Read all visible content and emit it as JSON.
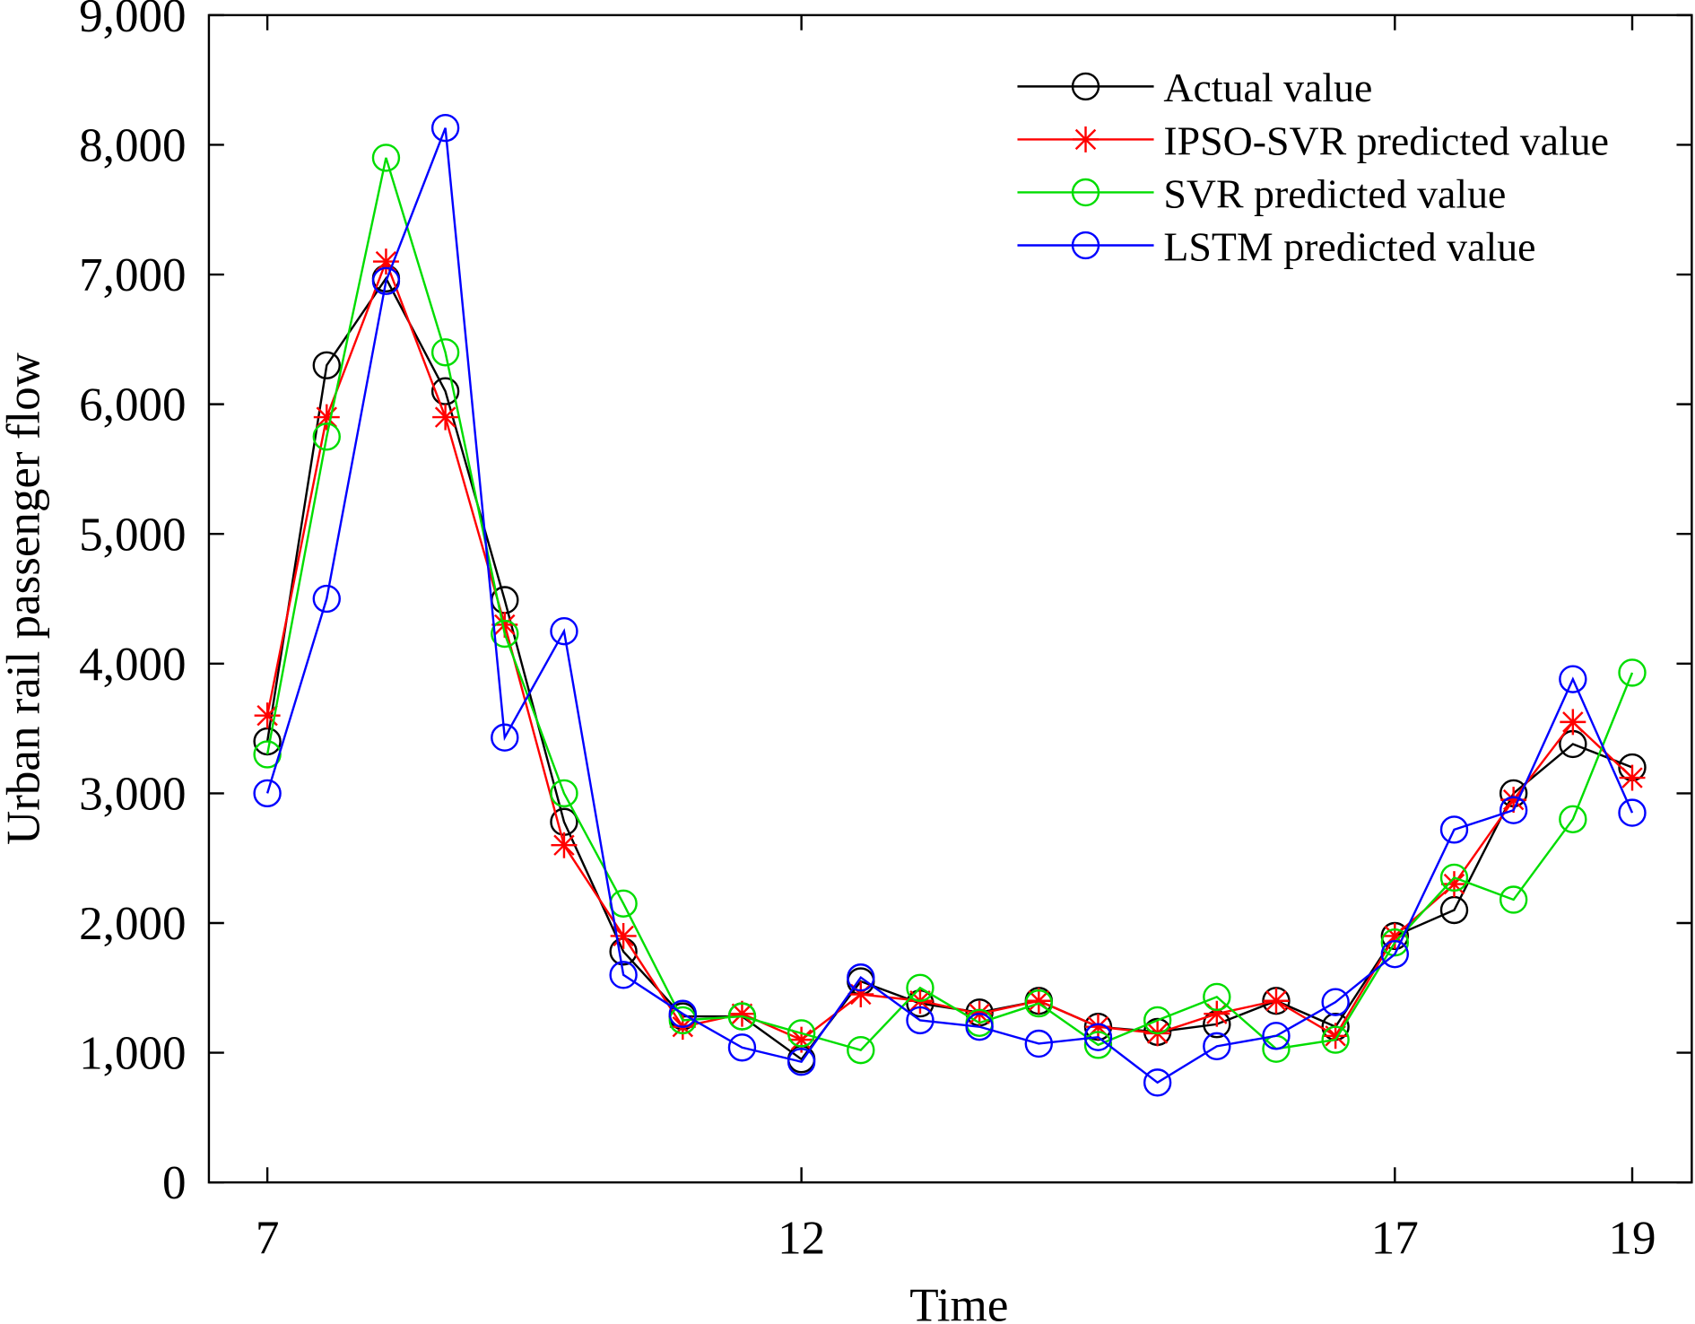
{
  "chart_data": {
    "type": "line",
    "xlabel": "Time",
    "ylabel": "Urban rail passenger flow",
    "ylim": [
      0,
      9000
    ],
    "yticks": [
      0,
      1000,
      2000,
      3000,
      4000,
      5000,
      6000,
      7000,
      8000,
      9000
    ],
    "ytick_labels": [
      "0",
      "1,000",
      "2,000",
      "3,000",
      "4,000",
      "5,000",
      "6,000",
      "7,000",
      "8,000",
      "9,000"
    ],
    "x_sample_index": [
      0,
      1,
      2,
      3,
      4,
      5,
      6,
      7,
      8,
      9,
      10,
      11,
      12,
      13,
      14,
      15,
      16,
      17,
      18,
      19,
      20,
      21,
      22,
      23
    ],
    "xticks": [
      {
        "sample_index": 0,
        "label": "7"
      },
      {
        "sample_index": 9,
        "label": "12"
      },
      {
        "sample_index": 19,
        "label": "17"
      },
      {
        "sample_index": 23,
        "label": "19"
      }
    ],
    "grid": false,
    "legend_position": "top-right",
    "series": [
      {
        "name": "Actual value",
        "color": "#000000",
        "marker": "circle",
        "values": [
          3400,
          6300,
          6970,
          6100,
          4490,
          2780,
          1780,
          1280,
          1280,
          950,
          1550,
          1380,
          1310,
          1400,
          1200,
          1160,
          1220,
          1400,
          1200,
          1900,
          2100,
          3000,
          3380,
          3200
        ]
      },
      {
        "name": "IPSO-SVR predicted value",
        "color": "#ff0000",
        "marker": "asterisk",
        "values": [
          3600,
          5900,
          7100,
          5900,
          4300,
          2600,
          1900,
          1200,
          1300,
          1100,
          1450,
          1400,
          1300,
          1400,
          1200,
          1150,
          1300,
          1400,
          1130,
          1900,
          2300,
          2950,
          3550,
          3120
        ]
      },
      {
        "name": "SVR predicted value",
        "color": "#00dd00",
        "marker": "circle",
        "values": [
          3300,
          5750,
          7900,
          6400,
          4230,
          3000,
          2150,
          1250,
          1280,
          1150,
          1020,
          1500,
          1230,
          1380,
          1060,
          1250,
          1430,
          1030,
          1100,
          1850,
          2350,
          2180,
          2800,
          3930
        ]
      },
      {
        "name": "LSTM predicted value",
        "color": "#0000ff",
        "marker": "circle",
        "values": [
          3000,
          4500,
          6950,
          8130,
          3430,
          4250,
          1600,
          1300,
          1040,
          930,
          1580,
          1250,
          1200,
          1070,
          1120,
          770,
          1050,
          1130,
          1390,
          1760,
          2720,
          2870,
          3880,
          2850
        ]
      }
    ]
  }
}
